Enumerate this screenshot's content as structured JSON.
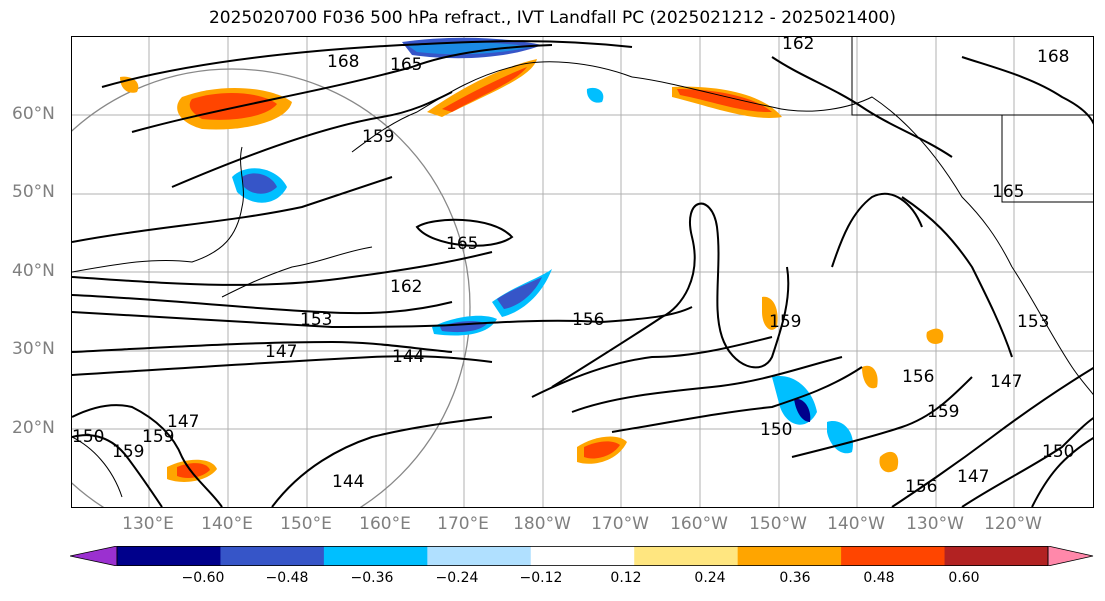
{
  "title": "2025020700 F036 500 hPa refract., IVT Landfall PC (2025021212 - 2025021400)",
  "latitude_labels": [
    "60°N",
    "50°N",
    "40°N",
    "30°N",
    "20°N"
  ],
  "longitude_labels": [
    "130°E",
    "140°E",
    "150°E",
    "160°E",
    "170°E",
    "180°W",
    "170°W",
    "160°W",
    "150°W",
    "140°W",
    "130°W",
    "120°W"
  ],
  "colorbar": {
    "ticks": [
      "−0.60",
      "−0.48",
      "−0.36",
      "−0.24",
      "−0.12",
      "0.12",
      "0.24",
      "0.36",
      "0.48",
      "0.60"
    ],
    "colors": [
      "#9b30d0",
      "#00008b",
      "#3655c8",
      "#00bfff",
      "#b0e0ff",
      "#ffffff",
      "#ffe680",
      "#ffa500",
      "#ff4500",
      "#b22222",
      "#ff88aa"
    ]
  },
  "contour_labels": [
    "168",
    "165",
    "159",
    "165",
    "162",
    "153",
    "147",
    "144",
    "156",
    "159",
    "150",
    "147",
    "156",
    "144",
    "147",
    "150",
    "159",
    "156",
    "147",
    "150",
    "159",
    "165",
    "168",
    "153",
    "162",
    "159"
  ]
}
